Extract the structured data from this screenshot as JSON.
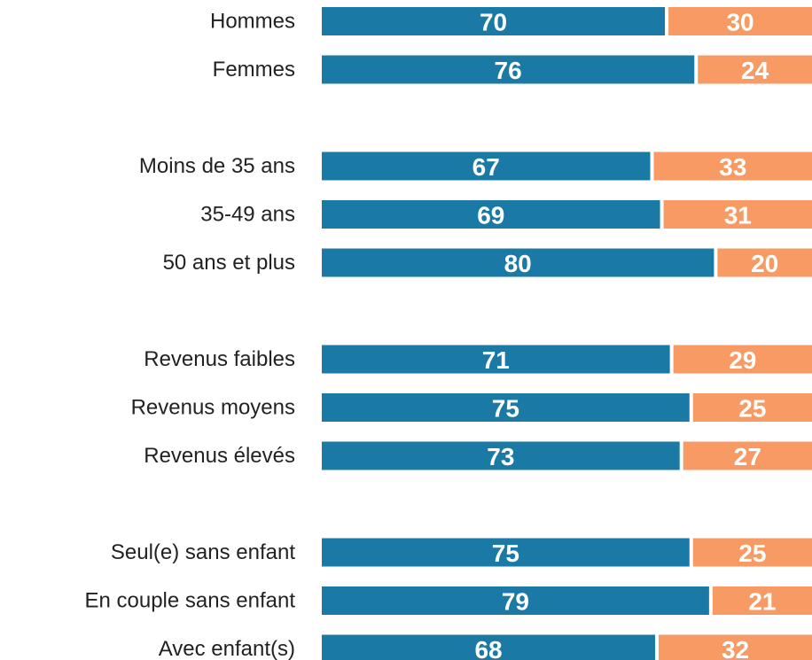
{
  "chart_data": {
    "type": "stacked-bar-horizontal",
    "categories": [
      "Hommes",
      "Femmes",
      null,
      "Moins de 35 ans",
      "35-49 ans",
      "50 ans et plus",
      null,
      "Revenus faibles",
      "Revenus moyens",
      "Revenus élevés",
      null,
      "Seul(e) sans enfant",
      "En couple sans enfant",
      "Avec enfant(s)"
    ],
    "series": [
      {
        "color": "#1a7aa5",
        "values": [
          70,
          76,
          null,
          67,
          69,
          80,
          null,
          71,
          75,
          73,
          null,
          75,
          79,
          68
        ]
      },
      {
        "color": "#f79a63",
        "values": [
          30,
          24,
          null,
          33,
          31,
          20,
          null,
          29,
          25,
          27,
          null,
          25,
          21,
          32
        ]
      }
    ],
    "xlim": [
      0,
      100
    ]
  }
}
